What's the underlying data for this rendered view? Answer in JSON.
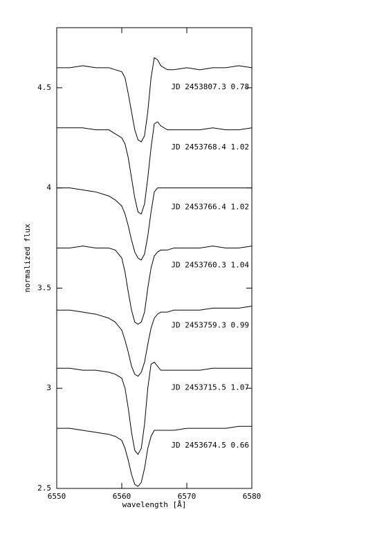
{
  "chart_data": {
    "type": "line",
    "x_label": "wavelength [Å]",
    "y_label": "normalized flux",
    "x": [
      6550,
      6552,
      6554,
      6556,
      6558,
      6559,
      6560,
      6560.5,
      6561,
      6561.5,
      6562,
      6562.5,
      6563,
      6563.5,
      6564,
      6564.5,
      6565,
      6565.5,
      6566,
      6567,
      6568,
      6570,
      6572,
      6574,
      6576,
      6578,
      6580
    ],
    "xlim": [
      6550,
      6580
    ],
    "xticks": [
      6550,
      6560,
      6570,
      6580
    ],
    "ylim": [
      2.5,
      4.8
    ],
    "yticks": [
      2.5,
      3,
      3.5,
      4,
      4.5
    ],
    "color": "#000000",
    "series": [
      {
        "name": "JD 2453807.3 0.78",
        "values": [
          4.6,
          4.6,
          4.61,
          4.6,
          4.6,
          4.59,
          4.58,
          4.55,
          4.47,
          4.38,
          4.29,
          4.24,
          4.23,
          4.26,
          4.38,
          4.55,
          4.65,
          4.64,
          4.61,
          4.59,
          4.59,
          4.6,
          4.59,
          4.6,
          4.6,
          4.61,
          4.6
        ]
      },
      {
        "name": "JD 2453768.4 1.02",
        "values": [
          4.3,
          4.3,
          4.3,
          4.29,
          4.29,
          4.27,
          4.25,
          4.22,
          4.15,
          4.05,
          3.95,
          3.88,
          3.87,
          3.92,
          4.05,
          4.2,
          4.32,
          4.33,
          4.31,
          4.29,
          4.29,
          4.29,
          4.29,
          4.3,
          4.29,
          4.29,
          4.3
        ]
      },
      {
        "name": "JD 2453766.4 1.02",
        "values": [
          4.0,
          4.0,
          3.99,
          3.98,
          3.96,
          3.94,
          3.91,
          3.87,
          3.81,
          3.74,
          3.68,
          3.65,
          3.64,
          3.67,
          3.76,
          3.88,
          3.98,
          4.0,
          4.0,
          4.0,
          4.0,
          4.0,
          4.0,
          4.0,
          4.0,
          4.0,
          4.0
        ]
      },
      {
        "name": "JD 2453760.3 1.04",
        "values": [
          3.7,
          3.7,
          3.71,
          3.7,
          3.7,
          3.69,
          3.65,
          3.58,
          3.48,
          3.39,
          3.33,
          3.32,
          3.33,
          3.38,
          3.5,
          3.6,
          3.66,
          3.68,
          3.69,
          3.69,
          3.7,
          3.7,
          3.7,
          3.71,
          3.7,
          3.7,
          3.71
        ]
      },
      {
        "name": "JD 2453759.3 0.99",
        "values": [
          3.39,
          3.39,
          3.38,
          3.37,
          3.35,
          3.33,
          3.29,
          3.24,
          3.18,
          3.11,
          3.07,
          3.06,
          3.08,
          3.13,
          3.22,
          3.3,
          3.35,
          3.37,
          3.38,
          3.38,
          3.39,
          3.39,
          3.39,
          3.4,
          3.4,
          3.4,
          3.41
        ]
      },
      {
        "name": "JD 2453715.5 1.07",
        "values": [
          3.1,
          3.1,
          3.09,
          3.09,
          3.08,
          3.07,
          3.05,
          3.0,
          2.9,
          2.78,
          2.69,
          2.67,
          2.7,
          2.82,
          3.0,
          3.12,
          3.13,
          3.11,
          3.09,
          3.09,
          3.09,
          3.09,
          3.09,
          3.1,
          3.1,
          3.1,
          3.1
        ]
      },
      {
        "name": "JD 2453674.5 0.66",
        "values": [
          2.8,
          2.8,
          2.79,
          2.78,
          2.77,
          2.76,
          2.74,
          2.7,
          2.64,
          2.57,
          2.52,
          2.51,
          2.53,
          2.6,
          2.7,
          2.76,
          2.79,
          2.79,
          2.79,
          2.79,
          2.79,
          2.8,
          2.8,
          2.8,
          2.8,
          2.81,
          2.81
        ]
      }
    ]
  }
}
